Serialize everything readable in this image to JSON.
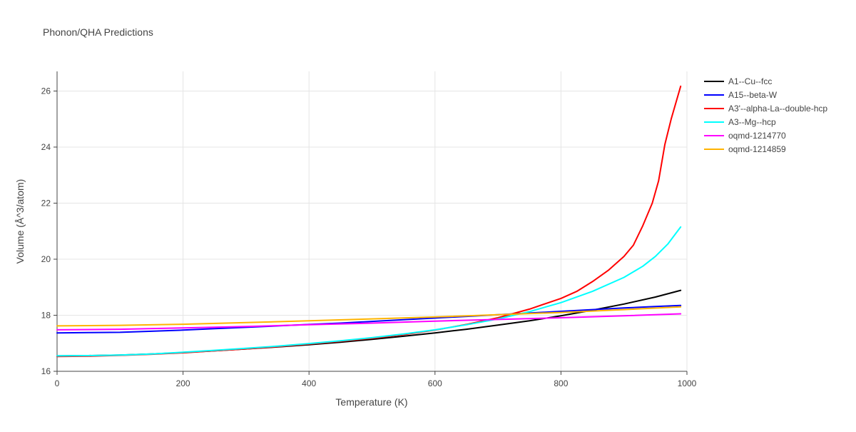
{
  "chart_data": {
    "type": "line",
    "title": "Phonon/QHA Predictions",
    "xlabel": "Temperature (K)",
    "ylabel": "Volume (Å^3/atom)",
    "xlim": [
      0,
      1000
    ],
    "ylim": [
      16,
      26.7
    ],
    "x_ticks": [
      0,
      200,
      400,
      600,
      800,
      1000
    ],
    "y_ticks": [
      16,
      18,
      20,
      22,
      24,
      26
    ],
    "grid": true,
    "legend_position": "top-right",
    "series": [
      {
        "name": "A1--Cu--fcc",
        "color": "#000000",
        "x": [
          0,
          50,
          100,
          150,
          200,
          250,
          300,
          350,
          400,
          450,
          500,
          550,
          600,
          650,
          700,
          750,
          800,
          850,
          900,
          950,
          990
        ],
        "y": [
          16.55,
          16.56,
          16.58,
          16.62,
          16.67,
          16.73,
          16.8,
          16.87,
          16.95,
          17.04,
          17.14,
          17.25,
          17.37,
          17.5,
          17.65,
          17.8,
          17.98,
          18.18,
          18.4,
          18.65,
          18.89
        ]
      },
      {
        "name": "A15--beta-W",
        "color": "#0000ff",
        "x": [
          0,
          50,
          100,
          150,
          200,
          250,
          300,
          350,
          400,
          450,
          500,
          550,
          600,
          650,
          700,
          750,
          800,
          850,
          900,
          950,
          990
        ],
        "y": [
          17.37,
          17.38,
          17.39,
          17.43,
          17.47,
          17.52,
          17.57,
          17.62,
          17.67,
          17.72,
          17.78,
          17.84,
          17.9,
          17.96,
          18.02,
          18.08,
          18.14,
          18.2,
          18.26,
          18.31,
          18.35
        ]
      },
      {
        "name": "A3'--alpha-La--double-hcp",
        "color": "#ff0000",
        "x": [
          0,
          50,
          100,
          150,
          200,
          250,
          300,
          350,
          400,
          450,
          500,
          550,
          600,
          650,
          700,
          750,
          800,
          825,
          850,
          875,
          900,
          915,
          930,
          945,
          955,
          965,
          975,
          990
        ],
        "y": [
          16.53,
          16.54,
          16.57,
          16.61,
          16.66,
          16.73,
          16.8,
          16.88,
          16.97,
          17.07,
          17.18,
          17.31,
          17.47,
          17.67,
          17.91,
          18.22,
          18.6,
          18.85,
          19.2,
          19.6,
          20.1,
          20.5,
          21.2,
          22.0,
          22.8,
          24.1,
          25.0,
          26.17
        ]
      },
      {
        "name": "A3--Mg--hcp",
        "color": "#00ffff",
        "x": [
          0,
          50,
          100,
          150,
          200,
          250,
          300,
          350,
          400,
          450,
          500,
          550,
          600,
          650,
          700,
          750,
          800,
          850,
          900,
          930,
          950,
          970,
          990
        ],
        "y": [
          16.55,
          16.56,
          16.58,
          16.62,
          16.68,
          16.75,
          16.82,
          16.9,
          16.99,
          17.09,
          17.2,
          17.33,
          17.48,
          17.66,
          17.87,
          18.13,
          18.45,
          18.85,
          19.35,
          19.75,
          20.1,
          20.55,
          21.15
        ]
      },
      {
        "name": "oqmd-1214770",
        "color": "#ff00ff",
        "x": [
          0,
          100,
          200,
          300,
          400,
          500,
          600,
          700,
          800,
          900,
          990
        ],
        "y": [
          17.48,
          17.5,
          17.55,
          17.6,
          17.66,
          17.72,
          17.79,
          17.85,
          17.91,
          17.98,
          18.05
        ]
      },
      {
        "name": "oqmd-1214859",
        "color": "#ffb300",
        "x": [
          0,
          100,
          200,
          300,
          400,
          500,
          600,
          700,
          800,
          900,
          990
        ],
        "y": [
          17.62,
          17.64,
          17.68,
          17.74,
          17.8,
          17.87,
          17.94,
          18.02,
          18.1,
          18.2,
          18.3
        ]
      }
    ]
  }
}
